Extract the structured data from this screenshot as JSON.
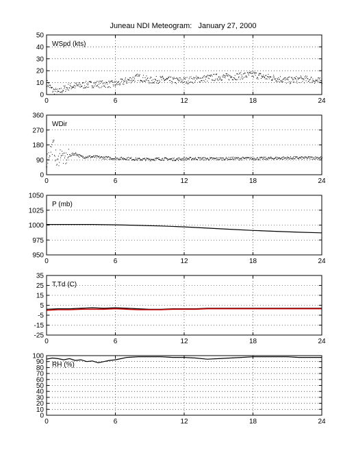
{
  "title": "Juneau NDI Meteogram:   January 27, 2000",
  "chart_data": [
    {
      "type": "scatter",
      "label": "WSpd (kts)",
      "xlim": [
        0,
        24
      ],
      "ylim": [
        0,
        50
      ],
      "xticks": [
        0,
        6,
        12,
        18,
        24
      ],
      "yticks": [
        0,
        10,
        20,
        30,
        40,
        50
      ],
      "grid": true,
      "series": [
        {
          "color": "#000000",
          "x": [
            0,
            0.5,
            1,
            1.5,
            2,
            3,
            4,
            5,
            6,
            7,
            8,
            9,
            10,
            11,
            12,
            13,
            14,
            15,
            16,
            17,
            18,
            19,
            20,
            21,
            22,
            23,
            24
          ],
          "y": [
            10,
            4,
            2,
            5,
            7,
            8,
            9,
            9,
            9,
            12,
            15,
            12,
            13,
            12,
            12,
            13,
            14,
            15,
            15,
            16,
            17,
            15,
            14,
            12,
            13,
            13,
            11
          ]
        }
      ]
    },
    {
      "type": "scatter",
      "label": "WDir",
      "xlim": [
        0,
        24
      ],
      "ylim": [
        0,
        360
      ],
      "xticks": [
        0,
        6,
        12,
        18,
        24
      ],
      "yticks": [
        0,
        90,
        180,
        270,
        360
      ],
      "grid": true,
      "series": [
        {
          "color": "#000000",
          "x": [
            0,
            0.3,
            0.6,
            0.9,
            1.2,
            1.5,
            2,
            2.5,
            3,
            4,
            5,
            6,
            7,
            8,
            9,
            10,
            11,
            12,
            13,
            14,
            15,
            16,
            17,
            18,
            19,
            20,
            21,
            22,
            23,
            24
          ],
          "y": [
            90,
            150,
            180,
            60,
            140,
            90,
            120,
            130,
            110,
            110,
            105,
            100,
            100,
            95,
            95,
            98,
            95,
            98,
            100,
            98,
            98,
            100,
            100,
            100,
            100,
            102,
            103,
            103,
            104,
            105
          ]
        }
      ]
    },
    {
      "type": "line",
      "label": "P (mb)",
      "xlim": [
        0,
        24
      ],
      "ylim": [
        950,
        1050
      ],
      "xticks": [
        0,
        6,
        12,
        18,
        24
      ],
      "yticks": [
        950,
        975,
        1000,
        1025,
        1050
      ],
      "grid": true,
      "series": [
        {
          "color": "#000000",
          "x": [
            0,
            2,
            4,
            6,
            8,
            10,
            12,
            14,
            16,
            18,
            20,
            22,
            24
          ],
          "y": [
            1001,
            1001,
            1001,
            1000.5,
            999.5,
            998.5,
            997,
            995,
            993,
            991,
            989.5,
            988,
            987
          ]
        }
      ]
    },
    {
      "type": "line",
      "label": "T,Td (C)",
      "xlim": [
        0,
        24
      ],
      "ylim": [
        -25,
        35
      ],
      "xticks": [
        0,
        6,
        12,
        18,
        24
      ],
      "yticks": [
        -25,
        -15,
        -5,
        5,
        15,
        25,
        35
      ],
      "grid": true,
      "series": [
        {
          "color": "#000000",
          "x": [
            0,
            1,
            2,
            3,
            4,
            5,
            6,
            7,
            8,
            9,
            10,
            11,
            12,
            13,
            14,
            15,
            16,
            17,
            18,
            19,
            20,
            21,
            22,
            23,
            24
          ],
          "y": [
            1,
            1.5,
            1.5,
            2,
            2.5,
            2,
            2.5,
            2,
            1.5,
            1,
            1,
            1.5,
            1.5,
            1.5,
            2,
            2,
            2,
            2,
            2,
            2,
            2,
            2,
            2,
            2,
            2
          ]
        },
        {
          "color": "#cc0000",
          "x": [
            0,
            1,
            2,
            3,
            4,
            5,
            6,
            7,
            8,
            9,
            10,
            11,
            12,
            13,
            14,
            15,
            16,
            17,
            18,
            19,
            20,
            21,
            22,
            23,
            24
          ],
          "y": [
            0,
            0.5,
            0.5,
            1,
            1,
            1,
            1.5,
            1,
            0.5,
            0.5,
            0.5,
            1,
            1,
            1,
            1.5,
            1.5,
            1.5,
            1.5,
            1.5,
            1.5,
            1.5,
            1.5,
            1.5,
            1.5,
            1.5
          ]
        }
      ]
    },
    {
      "type": "line",
      "label": "RH (%)",
      "xlim": [
        0,
        24
      ],
      "ylim": [
        0,
        100
      ],
      "xticks": [
        0,
        6,
        12,
        18,
        24
      ],
      "yticks": [
        0,
        10,
        20,
        30,
        40,
        50,
        60,
        70,
        80,
        90,
        100
      ],
      "grid": true,
      "series": [
        {
          "color": "#000000",
          "x": [
            0,
            0.5,
            1,
            1.5,
            2,
            2.5,
            3,
            3.5,
            4,
            4.5,
            5,
            5.5,
            6,
            6.5,
            7,
            8,
            9,
            10,
            11,
            12,
            13,
            14,
            15,
            16,
            17,
            18,
            19,
            20,
            21,
            22,
            23,
            24
          ],
          "y": [
            94,
            96,
            95,
            93,
            95,
            92,
            93,
            90,
            91,
            88,
            90,
            92,
            93,
            95,
            97,
            98,
            98,
            98,
            97,
            97,
            96,
            94,
            95,
            96,
            97,
            98,
            98,
            98,
            98,
            97,
            97,
            97
          ]
        }
      ]
    }
  ]
}
